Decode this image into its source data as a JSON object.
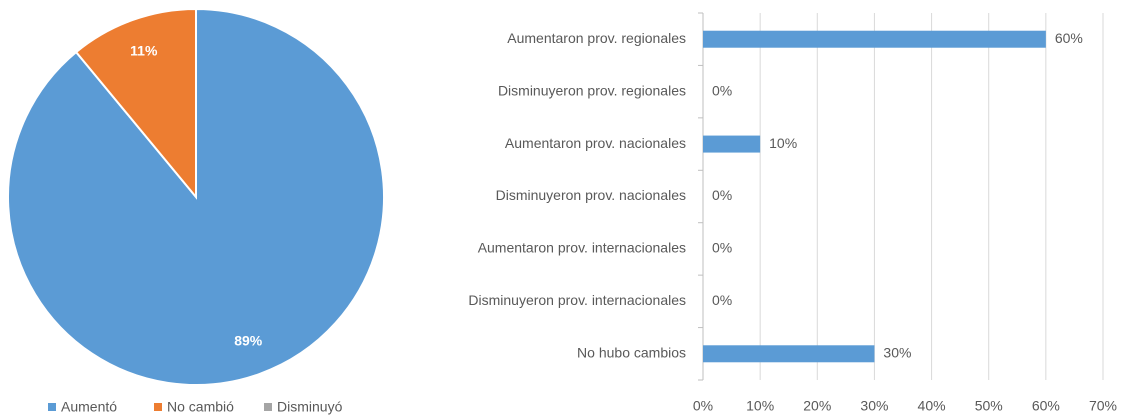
{
  "chart_data": [
    {
      "type": "pie",
      "categories": [
        "Aumentó",
        "No cambió",
        "Disminuyó"
      ],
      "values": [
        89,
        11,
        0
      ],
      "value_labels": [
        "89%",
        "11%",
        null
      ],
      "colors": [
        "#5b9bd5",
        "#ed7d31",
        "#a5a5a5"
      ],
      "legend": "bottom"
    },
    {
      "type": "barh",
      "categories": [
        "Aumentaron prov. regionales",
        "Disminuyeron prov. regionales",
        "Aumentaron prov. nacionales",
        "Disminuyeron prov. nacionales",
        "Aumentaron prov. internacionales",
        "Disminuyeron prov. internacionales",
        "No hubo cambios"
      ],
      "values": [
        60,
        0,
        10,
        0,
        0,
        0,
        30
      ],
      "value_labels": [
        "60%",
        "0%",
        "10%",
        "0%",
        "0%",
        "0%",
        "30%"
      ],
      "color": "#5b9bd5",
      "xlim": [
        0,
        70
      ],
      "xticks": [
        {
          "value": 0,
          "label": "0%"
        },
        {
          "value": 10,
          "label": "10%"
        },
        {
          "value": 20,
          "label": "20%"
        },
        {
          "value": 30,
          "label": "30%"
        },
        {
          "value": 40,
          "label": "40%"
        },
        {
          "value": 50,
          "label": "50%"
        },
        {
          "value": 60,
          "label": "60%"
        },
        {
          "value": 70,
          "label": "70%"
        }
      ],
      "grid": true
    }
  ]
}
